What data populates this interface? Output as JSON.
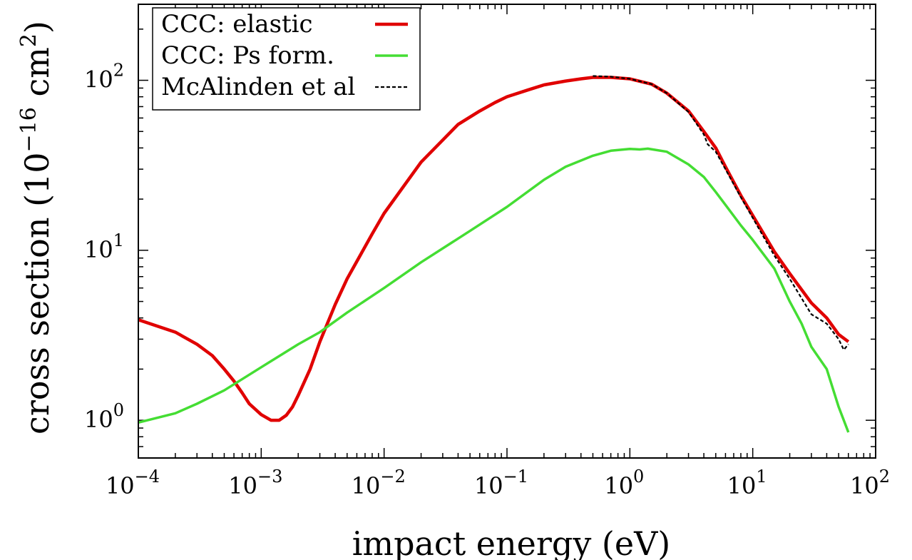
{
  "chart_data": {
    "type": "line",
    "title": "",
    "xlabel": "impact energy (eV)",
    "ylabel_parts": {
      "prefix": "cross section (10",
      "exponent": "−16",
      "middle": " cm",
      "unit_exponent": "2",
      "suffix": ")"
    },
    "x_scale": "log",
    "y_scale": "log",
    "xlim": [
      0.0001,
      100
    ],
    "ylim": [
      0.6,
      280
    ],
    "x_ticks": [
      {
        "value": 0.0001,
        "base": "10",
        "exp": "−4"
      },
      {
        "value": 0.001,
        "base": "10",
        "exp": "−3"
      },
      {
        "value": 0.01,
        "base": "10",
        "exp": "−2"
      },
      {
        "value": 0.1,
        "base": "10",
        "exp": "−1"
      },
      {
        "value": 1,
        "base": "10",
        "exp": "0"
      },
      {
        "value": 10,
        "base": "10",
        "exp": "1"
      },
      {
        "value": 100,
        "base": "10",
        "exp": "2"
      }
    ],
    "y_ticks": [
      {
        "value": 1,
        "base": "10",
        "exp": "0"
      },
      {
        "value": 10,
        "base": "10",
        "exp": "1"
      },
      {
        "value": 100,
        "base": "10",
        "exp": "2"
      }
    ],
    "grid": false,
    "legend_position": "top-left",
    "series": [
      {
        "name": "CCC: elastic",
        "color": "#e00000",
        "style": "solid-thick",
        "points": [
          [
            0.0001,
            3.9
          ],
          [
            0.0002,
            3.3
          ],
          [
            0.0003,
            2.8
          ],
          [
            0.0004,
            2.4
          ],
          [
            0.0005,
            2.0
          ],
          [
            0.0006,
            1.7
          ],
          [
            0.0007,
            1.45
          ],
          [
            0.0008,
            1.25
          ],
          [
            0.001,
            1.08
          ],
          [
            0.0012,
            1.0
          ],
          [
            0.0014,
            1.0
          ],
          [
            0.0016,
            1.07
          ],
          [
            0.0018,
            1.2
          ],
          [
            0.002,
            1.4
          ],
          [
            0.0025,
            2.0
          ],
          [
            0.003,
            2.9
          ],
          [
            0.004,
            4.8
          ],
          [
            0.005,
            6.8
          ],
          [
            0.006,
            8.6
          ],
          [
            0.008,
            12.5
          ],
          [
            0.01,
            16.5
          ],
          [
            0.02,
            33
          ],
          [
            0.04,
            55
          ],
          [
            0.06,
            66
          ],
          [
            0.08,
            74
          ],
          [
            0.1,
            80
          ],
          [
            0.15,
            88
          ],
          [
            0.2,
            94
          ],
          [
            0.3,
            99
          ],
          [
            0.4,
            102
          ],
          [
            0.5,
            104
          ],
          [
            0.7,
            104
          ],
          [
            1.0,
            102
          ],
          [
            1.5,
            95
          ],
          [
            2.0,
            84
          ],
          [
            3.0,
            66
          ],
          [
            4.0,
            50
          ],
          [
            5.0,
            40
          ],
          [
            6.0,
            31
          ],
          [
            8.0,
            21
          ],
          [
            10.0,
            16
          ],
          [
            15.0,
            9.8
          ],
          [
            20.0,
            7.3
          ],
          [
            30.0,
            4.9
          ],
          [
            40.0,
            4.0
          ],
          [
            50.0,
            3.2
          ],
          [
            60.0,
            2.9
          ]
        ]
      },
      {
        "name": "CCC: Ps form.",
        "color": "#44dd33",
        "style": "solid",
        "points": [
          [
            0.0001,
            0.97
          ],
          [
            0.0002,
            1.1
          ],
          [
            0.0003,
            1.25
          ],
          [
            0.0005,
            1.5
          ],
          [
            0.001,
            2.05
          ],
          [
            0.002,
            2.8
          ],
          [
            0.003,
            3.3
          ],
          [
            0.005,
            4.3
          ],
          [
            0.01,
            6.0
          ],
          [
            0.02,
            8.5
          ],
          [
            0.05,
            13
          ],
          [
            0.1,
            18
          ],
          [
            0.2,
            26
          ],
          [
            0.3,
            31
          ],
          [
            0.5,
            36
          ],
          [
            0.7,
            38.5
          ],
          [
            1.0,
            39.5
          ],
          [
            1.2,
            39.2
          ],
          [
            1.4,
            39.6
          ],
          [
            2.0,
            38
          ],
          [
            3.0,
            32
          ],
          [
            4.0,
            27
          ],
          [
            5.0,
            22
          ],
          [
            6.0,
            18.5
          ],
          [
            8.0,
            14
          ],
          [
            10.0,
            11.5
          ],
          [
            15.0,
            7.8
          ],
          [
            20.0,
            5.0
          ],
          [
            25.0,
            3.7
          ],
          [
            30.0,
            2.7
          ],
          [
            40.0,
            2.0
          ],
          [
            50.0,
            1.2
          ],
          [
            60.0,
            0.85
          ]
        ]
      },
      {
        "name": "McAlinden et al",
        "color": "#000000",
        "style": "dashed",
        "points": [
          [
            0.5,
            106
          ],
          [
            0.7,
            105
          ],
          [
            1.0,
            102
          ],
          [
            1.5,
            95
          ],
          [
            2.0,
            84
          ],
          [
            3.0,
            65
          ],
          [
            4.0,
            48
          ],
          [
            4.3,
            42
          ],
          [
            5.0,
            38
          ],
          [
            6.0,
            30
          ],
          [
            8.0,
            20.5
          ],
          [
            10.0,
            15.5
          ],
          [
            15.0,
            9.3
          ],
          [
            20.0,
            6.8
          ],
          [
            30.0,
            4.2
          ],
          [
            40.0,
            3.7
          ],
          [
            50.0,
            3.0
          ],
          [
            55.0,
            2.6
          ],
          [
            60.0,
            2.8
          ]
        ]
      }
    ]
  }
}
